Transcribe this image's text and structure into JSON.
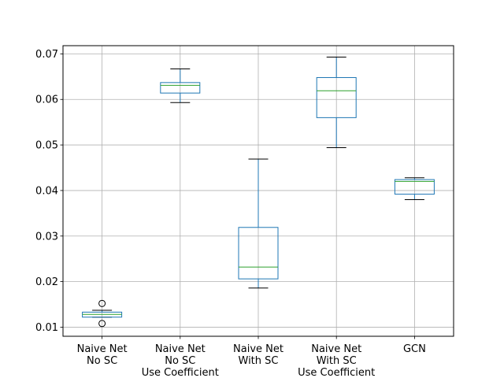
{
  "chart_data": {
    "type": "box",
    "title": "",
    "xlabel": "",
    "ylabel": "",
    "grid": true,
    "ylim": [
      0.008,
      0.0718
    ],
    "yticks": [
      0.01,
      0.02,
      0.03,
      0.04,
      0.05,
      0.06,
      0.07
    ],
    "ytick_labels": [
      "0.01",
      "0.02",
      "0.03",
      "0.04",
      "0.05",
      "0.06",
      "0.07"
    ],
    "categories": [
      [
        "Naive Net",
        "No SC"
      ],
      [
        "Naive Net",
        "No SC",
        "Use Coefficient"
      ],
      [
        "Naive Net",
        "With SC"
      ],
      [
        "Naive Net",
        "With SC",
        "Use Coefficient"
      ],
      [
        "GCN"
      ]
    ],
    "boxes": [
      {
        "whisker_low": 0.0122,
        "q1": 0.0122,
        "median": 0.0128,
        "q3": 0.0133,
        "whisker_high": 0.0137,
        "outliers": [
          0.0152,
          0.0108
        ]
      },
      {
        "whisker_low": 0.0593,
        "q1": 0.0614,
        "median": 0.0631,
        "q3": 0.0637,
        "whisker_high": 0.0667,
        "outliers": []
      },
      {
        "whisker_low": 0.0186,
        "q1": 0.0206,
        "median": 0.0232,
        "q3": 0.0319,
        "whisker_high": 0.0469,
        "outliers": []
      },
      {
        "whisker_low": 0.0494,
        "q1": 0.056,
        "median": 0.0619,
        "q3": 0.0648,
        "whisker_high": 0.0693,
        "outliers": []
      },
      {
        "whisker_low": 0.038,
        "q1": 0.0392,
        "median": 0.042,
        "q3": 0.0424,
        "whisker_high": 0.0428,
        "outliers": []
      }
    ],
    "colors": {
      "box": "#1f77b4",
      "median": "#2ca02c",
      "cap": "#000000",
      "grid": "#b0b0b0",
      "axis": "#000000"
    }
  }
}
